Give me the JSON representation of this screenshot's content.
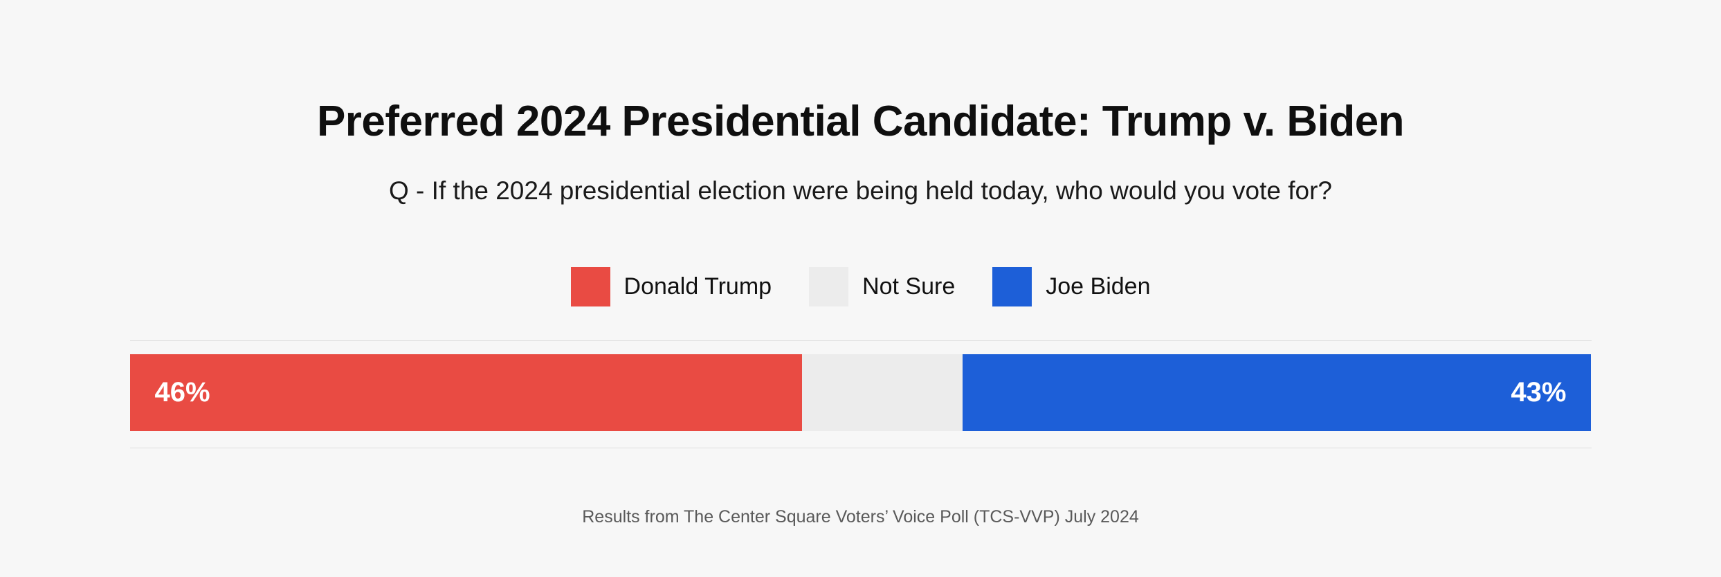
{
  "colors": {
    "background": "#f7f7f7",
    "trump_red": "#e94b43",
    "not_sure_gray": "#ececec",
    "biden_blue": "#1d5fd8",
    "divider": "#dedede",
    "bar_label_text": "#ffffff",
    "source_text": "#595959"
  },
  "header": {
    "title": "Preferred 2024 Presidential Candidate: Trump v. Biden",
    "subtitle": "Q - If the 2024 presidential election were being held today, who would you vote for?"
  },
  "legend": {
    "items": [
      {
        "label": "Donald Trump",
        "color": "#e94b43"
      },
      {
        "label": "Not Sure",
        "color": "#ececec"
      },
      {
        "label": "Joe Biden",
        "color": "#1d5fd8"
      }
    ]
  },
  "footer": {
    "source": "Results from The Center Square Voters’ Voice Poll (TCS-VVP) July 2024"
  },
  "chart_data": {
    "type": "bar",
    "orientation": "horizontal-stacked",
    "title": "Preferred 2024 Presidential Candidate: Trump v. Biden",
    "subtitle": "Q - If the 2024 presidential election were being held today, who would you vote for?",
    "categories": [
      "Preferred 2024 presidential candidate"
    ],
    "series": [
      {
        "name": "Donald Trump",
        "values": [
          46
        ],
        "color": "#e94b43",
        "label": "46%"
      },
      {
        "name": "Not Sure",
        "values": [
          11
        ],
        "color": "#ececec",
        "label": ""
      },
      {
        "name": "Joe Biden",
        "values": [
          43
        ],
        "color": "#1d5fd8",
        "label": "43%"
      }
    ],
    "xlabel": "",
    "ylabel": "",
    "xlim": [
      0,
      100
    ],
    "value_unit": "%",
    "grid": false,
    "legend_position": "top-center",
    "data_labels_visible": [
      "46%",
      "43%"
    ],
    "source_note": "Results from The Center Square Voters’ Voice Poll (TCS-VVP) July 2024"
  }
}
